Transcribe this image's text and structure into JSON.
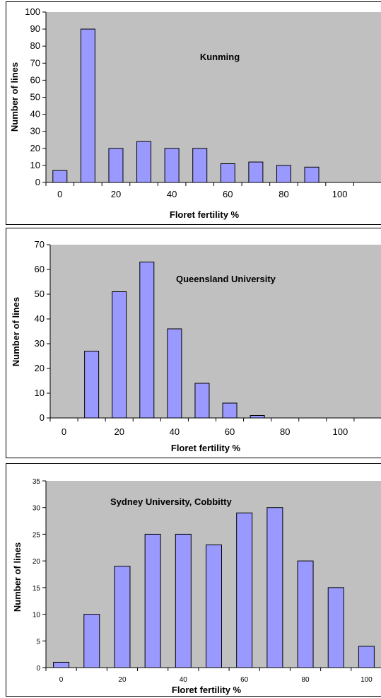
{
  "colors": {
    "plot_area": "#c0c0c0",
    "bar_fill": "#9999ff",
    "bar_stroke": "#000000"
  },
  "chart_data": [
    {
      "type": "bar",
      "title": "Kunming",
      "xlabel": "Floret fertility %",
      "ylabel": "Number of lines",
      "x": [
        0,
        10,
        20,
        30,
        40,
        50,
        60,
        70,
        80,
        90
      ],
      "values": [
        7,
        90,
        20,
        24,
        20,
        20,
        11,
        12,
        10,
        9
      ],
      "x_ticks": [
        "0",
        "20",
        "40",
        "60",
        "80",
        "100"
      ],
      "y_ticks": [
        "0",
        "10",
        "20",
        "30",
        "40",
        "50",
        "60",
        "70",
        "80",
        "90",
        "100"
      ],
      "xlim": [
        -5,
        115
      ],
      "ylim": [
        0,
        100
      ],
      "grid": false,
      "legend": "none"
    },
    {
      "type": "bar",
      "title": "Queensland University",
      "xlabel": "Floret fertility %",
      "ylabel": "Number of lines",
      "x": [
        0,
        10,
        20,
        30,
        40,
        50,
        60,
        70,
        80,
        90,
        100
      ],
      "values": [
        0,
        27,
        51,
        63,
        36,
        14,
        6,
        1,
        0,
        0,
        0
      ],
      "x_ticks": [
        "0",
        "20",
        "40",
        "60",
        "80",
        "100"
      ],
      "y_ticks": [
        "0",
        "10",
        "20",
        "30",
        "40",
        "50",
        "60",
        "70"
      ],
      "xlim": [
        -5,
        115
      ],
      "ylim": [
        0,
        70
      ],
      "grid": false,
      "legend": "none"
    },
    {
      "type": "bar",
      "title": "Sydney University, Cobbitty",
      "xlabel": "Floret fertility %",
      "ylabel": "Number of lines",
      "x": [
        0,
        10,
        20,
        30,
        40,
        50,
        60,
        70,
        80,
        90,
        100
      ],
      "values": [
        1,
        10,
        19,
        25,
        25,
        23,
        29,
        30,
        20,
        15,
        4
      ],
      "x_ticks": [
        "0",
        "20",
        "40",
        "60",
        "80",
        "100"
      ],
      "y_ticks": [
        "0",
        "5",
        "10",
        "15",
        "20",
        "25",
        "30",
        "35"
      ],
      "xlim": [
        -5,
        105
      ],
      "ylim": [
        0,
        35
      ],
      "grid": false,
      "legend": "none"
    }
  ]
}
